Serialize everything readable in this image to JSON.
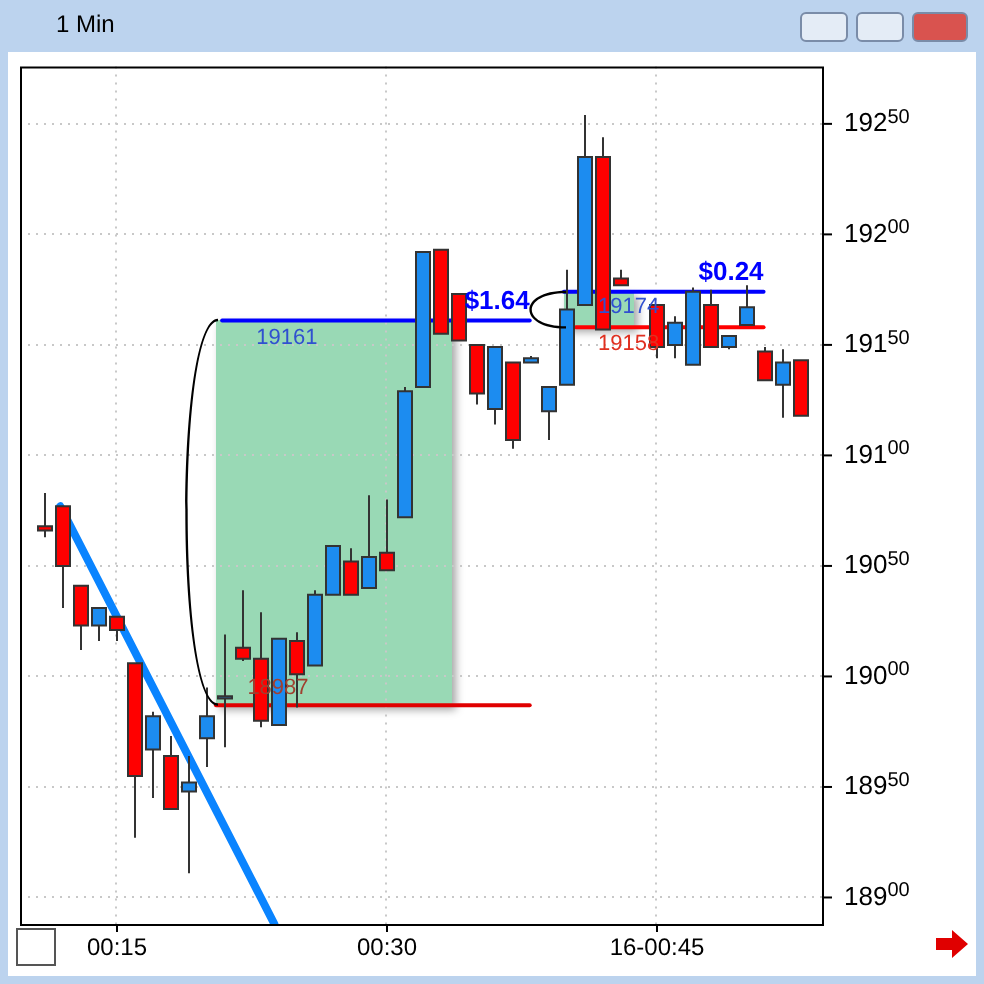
{
  "chart_data": {
    "type": "candlestick",
    "title": "1 Min",
    "x": [
      0.1833,
      0.2,
      0.2167,
      0.2333,
      0.25,
      0.2667,
      0.2833,
      0.3,
      0.3167,
      0.3333,
      0.35,
      0.3667,
      0.3833,
      0.4,
      0.4167,
      0.4333,
      0.45,
      0.4667,
      0.4833,
      0.5,
      0.5167,
      0.5333,
      0.55,
      0.5667,
      0.5833,
      0.6,
      0.6167,
      0.6333,
      0.65,
      0.6667,
      0.6833,
      0.7,
      0.7167,
      0.75,
      0.7667,
      0.7833,
      0.8,
      0.8167,
      0.8333,
      0.85,
      0.8667,
      0.8833
    ],
    "ohlc": [
      [
        19068,
        19083,
        19063,
        19066
      ],
      [
        19077,
        19077,
        19031,
        19050
      ],
      [
        19041,
        19041,
        19012,
        19023
      ],
      [
        19023,
        19031,
        19016,
        19031
      ],
      [
        19027,
        19027,
        19016,
        19021
      ],
      [
        19006,
        19006,
        18927,
        18955
      ],
      [
        18967,
        18984,
        18945,
        18982
      ],
      [
        18964,
        18973,
        18940,
        18940
      ],
      [
        18948,
        18964,
        18911,
        18952
      ],
      [
        18972,
        18995,
        18959,
        18982
      ],
      [
        18990,
        19019,
        18968,
        18991
      ],
      [
        19013,
        19039,
        19007,
        19008
      ],
      [
        19008,
        19029,
        18977,
        18980
      ],
      [
        18978,
        19017,
        18978,
        19017
      ],
      [
        19016,
        19020,
        18986,
        19001
      ],
      [
        19005,
        19039,
        19005,
        19037
      ],
      [
        19037,
        19059,
        19037,
        19059
      ],
      [
        19052,
        19058,
        19037,
        19037
      ],
      [
        19040,
        19082,
        19040,
        19054
      ],
      [
        19056,
        19080,
        19048,
        19048
      ],
      [
        19072,
        19131,
        19072,
        19129
      ],
      [
        19131,
        19192,
        19131,
        19192
      ],
      [
        19193,
        19193,
        19155,
        19155
      ],
      [
        19173,
        19173,
        19152,
        19152
      ],
      [
        19150,
        19150,
        19123,
        19128
      ],
      [
        19121,
        19149,
        19114,
        19149
      ],
      [
        19142,
        19142,
        19103,
        19107
      ],
      [
        19142,
        19145,
        19142,
        19144
      ],
      [
        19120,
        19131,
        19107,
        19131
      ],
      [
        19132,
        19184,
        19132,
        19166
      ],
      [
        19168,
        19254,
        19168,
        19235
      ],
      [
        19235,
        19244,
        19157,
        19157
      ],
      [
        19180,
        19184,
        19177,
        19177
      ],
      [
        19168,
        19168,
        19144,
        19149
      ],
      [
        19150,
        19163,
        19144,
        19160
      ],
      [
        19141,
        19176,
        19141,
        19174
      ],
      [
        19168,
        19175,
        19149,
        19149
      ],
      [
        19149,
        19154,
        19148,
        19154
      ],
      [
        19159,
        19177,
        19159,
        19167
      ],
      [
        19147,
        19149,
        19134,
        19134
      ],
      [
        19132,
        19148,
        19117,
        19142
      ],
      [
        19143,
        19143,
        19118,
        19118
      ]
    ],
    "colors": [
      "#ff0000",
      "#ff0000",
      "#ff0000",
      "#1c8cf0",
      "#ff0000",
      "#ff0000",
      "#1c8cf0",
      "#ff0000",
      "#1c8cf0",
      "#1c8cf0",
      "#1c8cf0",
      "#ff0000",
      "#ff0000",
      "#1c8cf0",
      "#ff0000",
      "#1c8cf0",
      "#1c8cf0",
      "#ff0000",
      "#1c8cf0",
      "#ff0000",
      "#1c8cf0",
      "#1c8cf0",
      "#ff0000",
      "#ff0000",
      "#ff0000",
      "#1c8cf0",
      "#ff0000",
      "#1c8cf0",
      "#1c8cf0",
      "#1c8cf0",
      "#1c8cf0",
      "#ff0000",
      "#ff0000",
      "#ff0000",
      "#1c8cf0",
      "#1c8cf0",
      "#ff0000",
      "#1c8cf0",
      "#1c8cf0",
      "#ff0000",
      "#1c8cf0",
      "#ff0000"
    ],
    "series": [
      {
        "type": "line",
        "color": "#0000ff",
        "x": [
          0.3483,
          0.6333
        ],
        "values": [
          19161,
          19161
        ]
      },
      {
        "type": "line",
        "color": "#e00000",
        "x": [
          0.3426,
          0.6333
        ],
        "values": [
          18987,
          18987
        ]
      },
      {
        "type": "line",
        "color": "#0000ff",
        "x": [
          0.665,
          0.85
        ],
        "values": [
          19174,
          19174
        ]
      },
      {
        "type": "line",
        "color": "#ff0000",
        "x": [
          0.676,
          0.85
        ],
        "values": [
          19158,
          19158
        ]
      },
      {
        "type": "line",
        "color": "#0a84ff",
        "x": [
          0.1983,
          0.3967
        ],
        "values": [
          19077,
          18888
        ]
      }
    ],
    "annotations": [
      {
        "text": "$1.64",
        "x": 0.6333,
        "y": 19161
      },
      {
        "text": "19161",
        "x": 0.38,
        "y": 19161
      },
      {
        "text": "18987",
        "x": 0.3717,
        "y": 18987
      },
      {
        "text": "$0.24",
        "x": 0.85,
        "y": 19174
      },
      {
        "text": "19174",
        "x": 0.6967,
        "y": 19174
      },
      {
        "text": "19158",
        "x": 0.6967,
        "y": 19158
      }
    ],
    "xlim": [
      0.161,
      0.906
    ],
    "xticks": [
      {
        "value": 0.25,
        "label": "00:15"
      },
      {
        "value": 0.5,
        "label": "00:30"
      },
      {
        "value": 0.75,
        "label": "16-00:45"
      }
    ],
    "ylim": [
      18888,
      19276
    ],
    "yticks": [
      18900,
      18950,
      19000,
      19050,
      19100,
      19150,
      19200,
      19250
    ],
    "grid": true,
    "legend": false
  }
}
